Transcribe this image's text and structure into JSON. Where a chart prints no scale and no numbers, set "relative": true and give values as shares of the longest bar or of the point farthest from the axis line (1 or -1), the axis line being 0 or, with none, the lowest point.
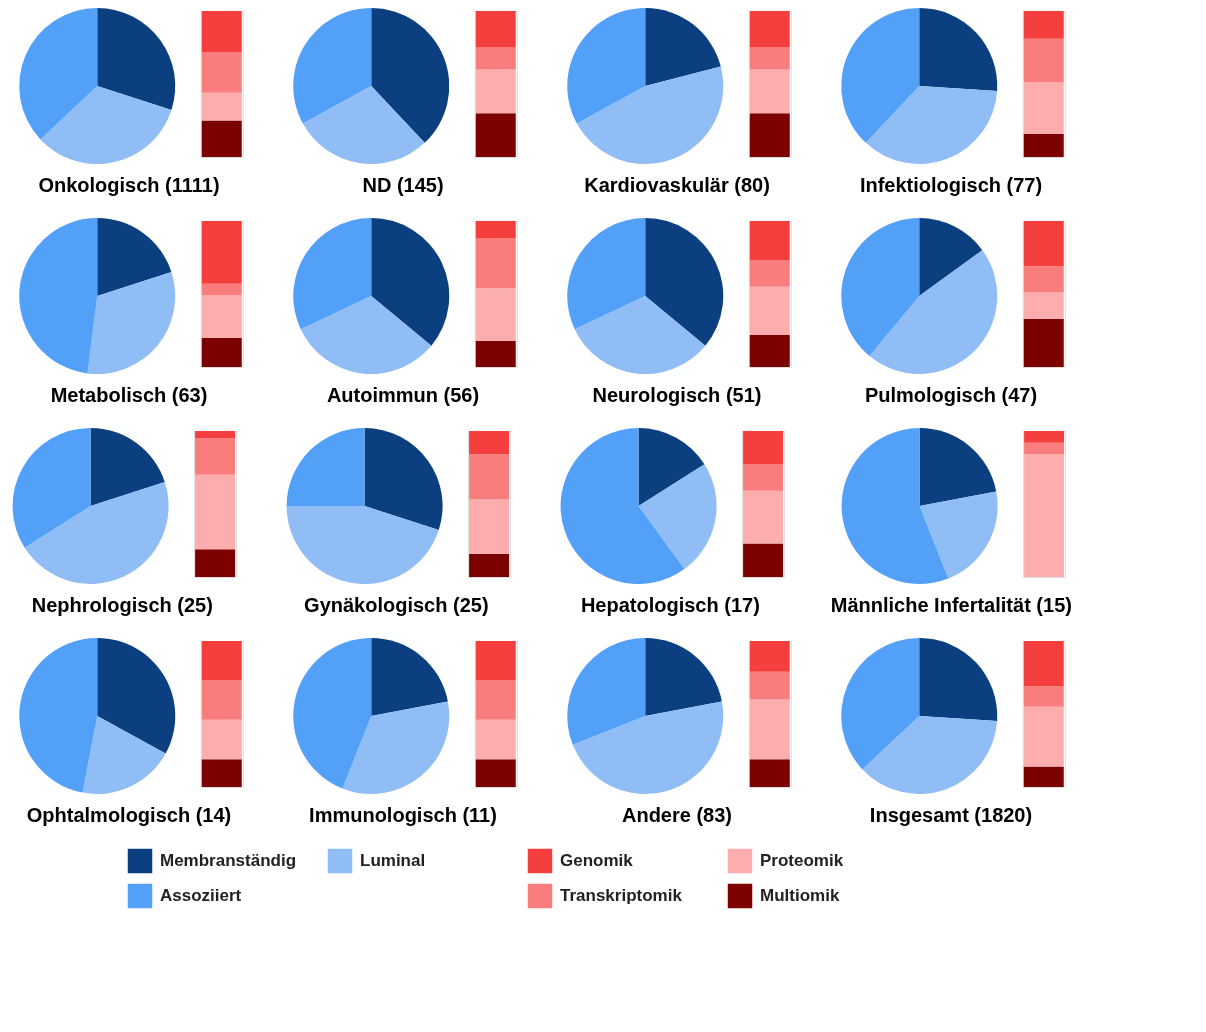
{
  "chart_data": [
    {
      "type": "pie",
      "title": "Onkologisch (1111)",
      "categories": [
        "Membranständig",
        "Luminal",
        "Assoziiert"
      ],
      "values": [
        30,
        33,
        37
      ],
      "colors": [
        "#0b3f80",
        "#90bdf5",
        "#52a0f7"
      ],
      "legend": "bottom"
    },
    {
      "type": "bar",
      "stacked": true,
      "relative": true,
      "categories": [
        null
      ],
      "legend": "bottom",
      "series": [
        {
          "name": "Multiomik",
          "color": "#7d0000",
          "values": [
            0.25
          ]
        },
        {
          "name": "Proteomik",
          "color": "#fdadad",
          "values": [
            0.19
          ]
        },
        {
          "name": "Transkriptomik",
          "color": "#f97d7d",
          "values": [
            0.28
          ]
        },
        {
          "name": "Genomik",
          "color": "#f53f3f",
          "values": [
            0.28
          ]
        }
      ]
    },
    {
      "type": "pie",
      "title": "ND (145)",
      "values": [
        38,
        29,
        33
      ],
      "colors": [
        "#0b3f80",
        "#90bdf5",
        "#52a0f7"
      ]
    },
    {
      "type": "bar",
      "stacked": true,
      "relative": true,
      "categories": [
        null
      ],
      "series": [
        {
          "color": "#7d0000",
          "values": [
            0.3
          ]
        },
        {
          "color": "#fdadad",
          "values": [
            0.3
          ]
        },
        {
          "color": "#f97d7d",
          "values": [
            0.15
          ]
        },
        {
          "color": "#f53f3f",
          "values": [
            0.25
          ]
        }
      ]
    },
    {
      "type": "pie",
      "title": "Kardiovaskulär (80)",
      "values": [
        21,
        46,
        33
      ],
      "colors": [
        "#0b3f80",
        "#90bdf5",
        "#52a0f7"
      ]
    },
    {
      "type": "bar",
      "stacked": true,
      "relative": true,
      "categories": [
        null
      ],
      "series": [
        {
          "color": "#7d0000",
          "values": [
            0.3
          ]
        },
        {
          "color": "#fdadad",
          "values": [
            0.3
          ]
        },
        {
          "color": "#f97d7d",
          "values": [
            0.15
          ]
        },
        {
          "color": "#f53f3f",
          "values": [
            0.25
          ]
        }
      ]
    },
    {
      "type": "pie",
      "title": "Infektiologisch (77)",
      "values": [
        26,
        36,
        38
      ],
      "colors": [
        "#0b3f80",
        "#90bdf5",
        "#52a0f7"
      ]
    },
    {
      "type": "bar",
      "stacked": true,
      "relative": true,
      "categories": [
        null
      ],
      "series": [
        {
          "color": "#7d0000",
          "values": [
            0.16
          ]
        },
        {
          "color": "#fdadad",
          "values": [
            0.35
          ]
        },
        {
          "color": "#f97d7d",
          "values": [
            0.3
          ]
        },
        {
          "color": "#f53f3f",
          "values": [
            0.19
          ]
        }
      ]
    },
    {
      "type": "pie",
      "title": "Metabolisch (63)",
      "values": [
        20,
        32,
        48
      ],
      "colors": [
        "#0b3f80",
        "#90bdf5",
        "#52a0f7"
      ]
    },
    {
      "type": "bar",
      "stacked": true,
      "relative": true,
      "categories": [
        null
      ],
      "series": [
        {
          "color": "#7d0000",
          "values": [
            0.2
          ]
        },
        {
          "color": "#fdadad",
          "values": [
            0.29
          ]
        },
        {
          "color": "#f97d7d",
          "values": [
            0.08
          ]
        },
        {
          "color": "#f53f3f",
          "values": [
            0.43
          ]
        }
      ]
    },
    {
      "type": "pie",
      "title": "Autoimmun (56)",
      "values": [
        36,
        32,
        32
      ],
      "colors": [
        "#0b3f80",
        "#90bdf5",
        "#52a0f7"
      ]
    },
    {
      "type": "bar",
      "stacked": true,
      "relative": true,
      "categories": [
        null
      ],
      "series": [
        {
          "color": "#7d0000",
          "values": [
            0.18
          ]
        },
        {
          "color": "#fdadad",
          "values": [
            0.36
          ]
        },
        {
          "color": "#f97d7d",
          "values": [
            0.34
          ]
        },
        {
          "color": "#f53f3f",
          "values": [
            0.12
          ]
        }
      ]
    },
    {
      "type": "pie",
      "title": "Neurologisch (51)",
      "values": [
        36,
        32,
        32
      ],
      "colors": [
        "#0b3f80",
        "#90bdf5",
        "#52a0f7"
      ]
    },
    {
      "type": "bar",
      "stacked": true,
      "relative": true,
      "categories": [
        null
      ],
      "series": [
        {
          "color": "#7d0000",
          "values": [
            0.22
          ]
        },
        {
          "color": "#fdadad",
          "values": [
            0.33
          ]
        },
        {
          "color": "#f97d7d",
          "values": [
            0.18
          ]
        },
        {
          "color": "#f53f3f",
          "values": [
            0.27
          ]
        }
      ]
    },
    {
      "type": "pie",
      "title": "Pulmologisch (47)",
      "values": [
        15,
        46,
        39
      ],
      "colors": [
        "#0b3f80",
        "#90bdf5",
        "#52a0f7"
      ]
    },
    {
      "type": "bar",
      "stacked": true,
      "relative": true,
      "categories": [
        null
      ],
      "series": [
        {
          "color": "#7d0000",
          "values": [
            0.33
          ]
        },
        {
          "color": "#fdadad",
          "values": [
            0.18
          ]
        },
        {
          "color": "#f97d7d",
          "values": [
            0.18
          ]
        },
        {
          "color": "#f53f3f",
          "values": [
            0.31
          ]
        }
      ]
    },
    {
      "type": "pie",
      "title": "Nephrologisch (25)",
      "values": [
        20,
        46,
        34
      ],
      "colors": [
        "#0b3f80",
        "#90bdf5",
        "#52a0f7"
      ]
    },
    {
      "type": "bar",
      "stacked": true,
      "relative": true,
      "categories": [
        null
      ],
      "series": [
        {
          "color": "#7d0000",
          "values": [
            0.19
          ]
        },
        {
          "color": "#fdadad",
          "values": [
            0.51
          ]
        },
        {
          "color": "#f97d7d",
          "values": [
            0.25
          ]
        },
        {
          "color": "#f53f3f",
          "values": [
            0.05
          ]
        }
      ]
    },
    {
      "type": "pie",
      "title": "Gynäkologisch (25)",
      "values": [
        30,
        45,
        25
      ],
      "colors": [
        "#0b3f80",
        "#90bdf5",
        "#52a0f7"
      ]
    },
    {
      "type": "bar",
      "stacked": true,
      "relative": true,
      "categories": [
        null
      ],
      "series": [
        {
          "color": "#7d0000",
          "values": [
            0.16
          ]
        },
        {
          "color": "#fdadad",
          "values": [
            0.37
          ]
        },
        {
          "color": "#f97d7d",
          "values": [
            0.31
          ]
        },
        {
          "color": "#f53f3f",
          "values": [
            0.16
          ]
        }
      ]
    },
    {
      "type": "pie",
      "title": "Hepatologisch (17)",
      "values": [
        16,
        24,
        60
      ],
      "colors": [
        "#0b3f80",
        "#90bdf5",
        "#52a0f7"
      ]
    },
    {
      "type": "bar",
      "stacked": true,
      "relative": true,
      "categories": [
        null
      ],
      "series": [
        {
          "color": "#7d0000",
          "values": [
            0.23
          ]
        },
        {
          "color": "#fdadad",
          "values": [
            0.36
          ]
        },
        {
          "color": "#f97d7d",
          "values": [
            0.18
          ]
        },
        {
          "color": "#f53f3f",
          "values": [
            0.23
          ]
        }
      ]
    },
    {
      "type": "pie",
      "title": "Männliche Infertalität (15)",
      "values": [
        22,
        22,
        56
      ],
      "colors": [
        "#0b3f80",
        "#90bdf5",
        "#52a0f7"
      ]
    },
    {
      "type": "bar",
      "stacked": true,
      "relative": true,
      "categories": [
        null
      ],
      "series": [
        {
          "color": "#7d0000",
          "values": [
            0
          ]
        },
        {
          "color": "#fdadad",
          "values": [
            0.84
          ]
        },
        {
          "color": "#f97d7d",
          "values": [
            0.08
          ]
        },
        {
          "color": "#f53f3f",
          "values": [
            0.08
          ]
        }
      ]
    },
    {
      "type": "pie",
      "title": "Ophtalmologisch (14)",
      "values": [
        33,
        20,
        47
      ],
      "colors": [
        "#0b3f80",
        "#90bdf5",
        "#52a0f7"
      ]
    },
    {
      "type": "bar",
      "stacked": true,
      "relative": true,
      "categories": [
        null
      ],
      "series": [
        {
          "color": "#7d0000",
          "values": [
            0.19
          ]
        },
        {
          "color": "#fdadad",
          "values": [
            0.27
          ]
        },
        {
          "color": "#f97d7d",
          "values": [
            0.27
          ]
        },
        {
          "color": "#f53f3f",
          "values": [
            0.27
          ]
        }
      ]
    },
    {
      "type": "pie",
      "title": "Immunologisch (11)",
      "values": [
        22,
        34,
        44
      ],
      "colors": [
        "#0b3f80",
        "#90bdf5",
        "#52a0f7"
      ]
    },
    {
      "type": "bar",
      "stacked": true,
      "relative": true,
      "categories": [
        null
      ],
      "series": [
        {
          "color": "#7d0000",
          "values": [
            0.19
          ]
        },
        {
          "color": "#fdadad",
          "values": [
            0.27
          ]
        },
        {
          "color": "#f97d7d",
          "values": [
            0.27
          ]
        },
        {
          "color": "#f53f3f",
          "values": [
            0.27
          ]
        }
      ]
    },
    {
      "type": "pie",
      "title": "Andere (83)",
      "values": [
        22,
        47,
        31
      ],
      "colors": [
        "#0b3f80",
        "#90bdf5",
        "#52a0f7"
      ]
    },
    {
      "type": "bar",
      "stacked": true,
      "relative": true,
      "categories": [
        null
      ],
      "series": [
        {
          "color": "#7d0000",
          "values": [
            0.19
          ]
        },
        {
          "color": "#fdadad",
          "values": [
            0.41
          ]
        },
        {
          "color": "#f97d7d",
          "values": [
            0.19
          ]
        },
        {
          "color": "#f53f3f",
          "values": [
            0.21
          ]
        }
      ]
    },
    {
      "type": "pie",
      "title": "Insgesamt (1820)",
      "values": [
        26,
        37,
        37
      ],
      "colors": [
        "#0b3f80",
        "#90bdf5",
        "#52a0f7"
      ]
    },
    {
      "type": "bar",
      "stacked": true,
      "relative": true,
      "categories": [
        null
      ],
      "series": [
        {
          "color": "#7d0000",
          "values": [
            0.14
          ]
        },
        {
          "color": "#fdadad",
          "values": [
            0.41
          ]
        },
        {
          "color": "#f97d7d",
          "values": [
            0.14
          ]
        },
        {
          "color": "#f53f3f",
          "values": [
            0.31
          ]
        }
      ]
    }
  ]
}
